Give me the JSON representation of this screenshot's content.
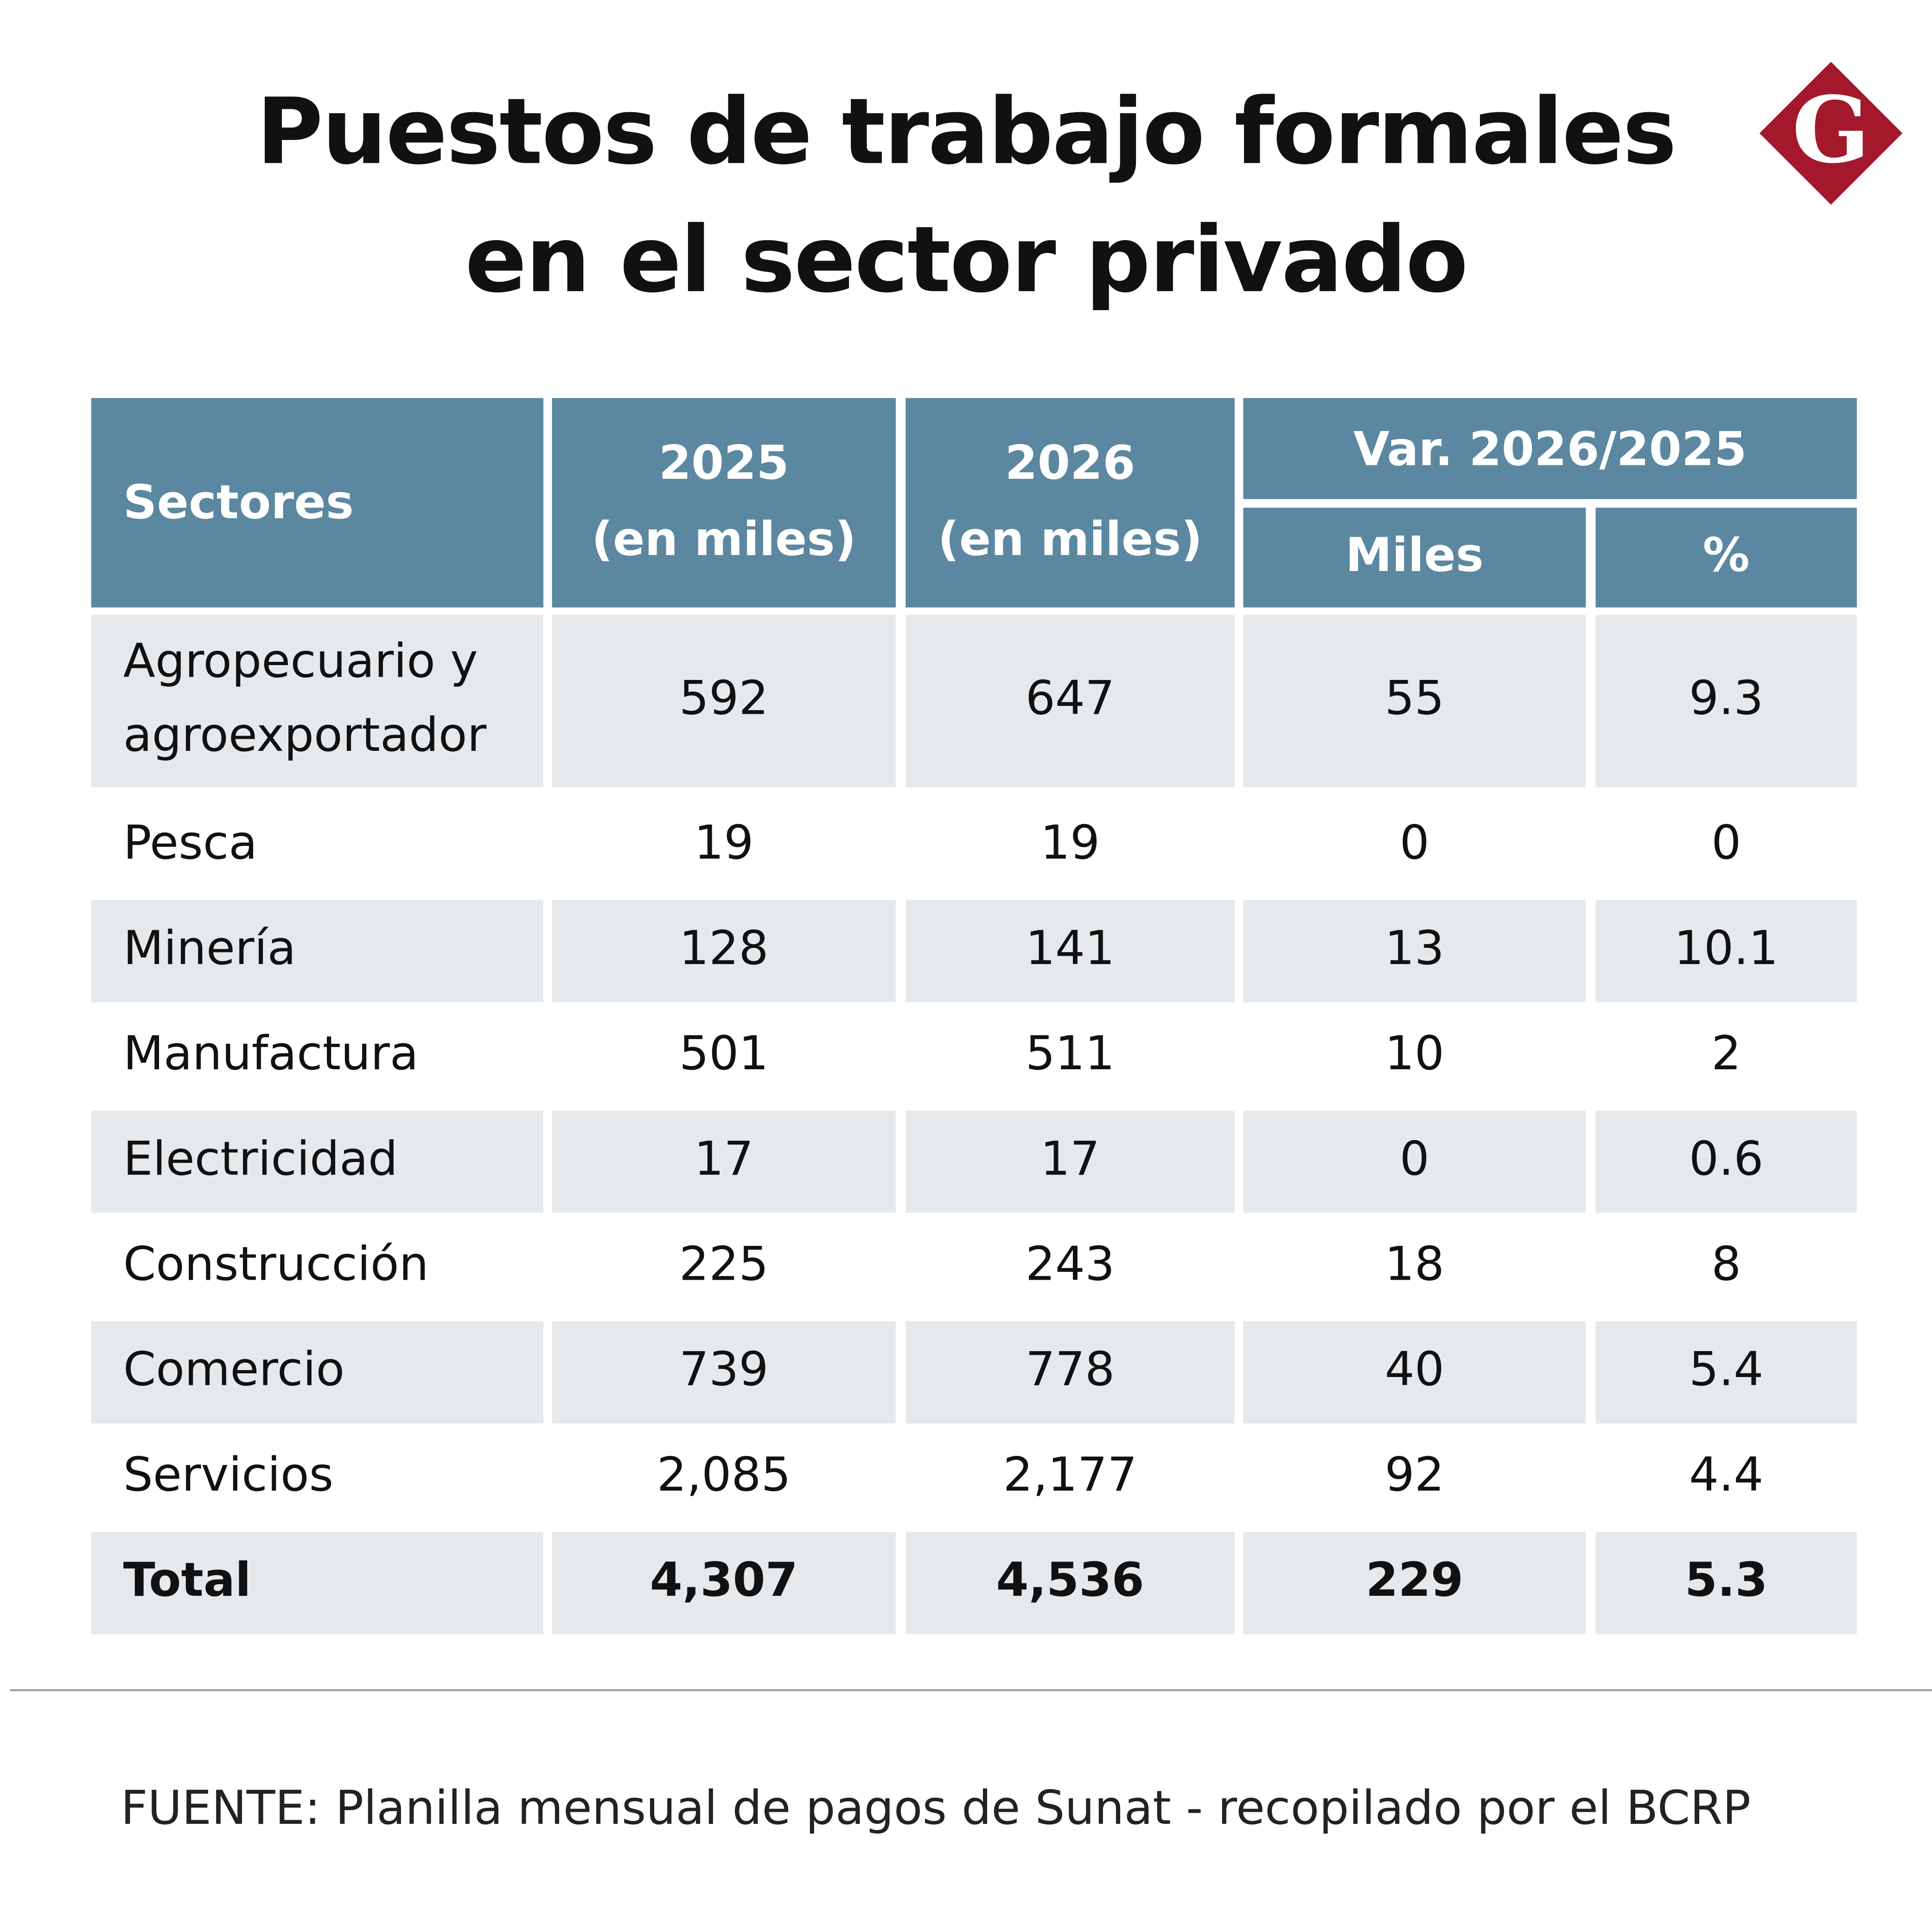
{
  "header": {
    "title": [
      "Puestos de trabajo formales",
      "en el sector privado"
    ],
    "logo": "G"
  },
  "table": {
    "headers": {
      "sectores": "Sectores",
      "y2025": [
        "2025",
        "(en miles)"
      ],
      "y2026": [
        "2026",
        "(en miles)"
      ],
      "variation": "Var. 2026/2025",
      "miles": "Miles",
      "percent": "%"
    },
    "rows": [
      [
        [
          "Agropecuario y",
          "agroexportador"
        ],
        "592",
        "647",
        "55",
        "9.3"
      ],
      [
        [
          "Pesca"
        ],
        "19",
        "19",
        "0",
        "0"
      ],
      [
        [
          "Minería"
        ],
        "128",
        "141",
        "13",
        "10.1"
      ],
      [
        [
          "Manufactura"
        ],
        "501",
        "511",
        "10",
        "2"
      ],
      [
        [
          "Electricidad"
        ],
        "17",
        "17",
        "0",
        "0.6"
      ],
      [
        [
          "Construcción"
        ],
        "225",
        "243",
        "18",
        "8"
      ],
      [
        [
          "Comercio"
        ],
        "739",
        "778",
        "40",
        "5.4"
      ],
      [
        [
          "Servicios"
        ],
        "2,085",
        "2,177",
        "92",
        "4.4"
      ]
    ],
    "total": [
      "Total",
      "4,307",
      "4,536",
      "229",
      "5.3"
    ]
  },
  "footer": {
    "source": "FUENTE: Planilla mensual de pagos de Sunat - recopilado por el BCRP"
  }
}
